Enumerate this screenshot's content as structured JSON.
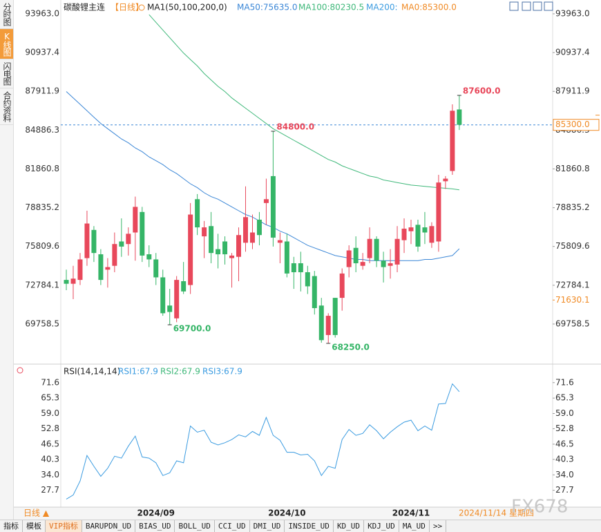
{
  "sidebar": [
    "分时图",
    "K线图",
    "闪电图",
    "合约资料"
  ],
  "header": {
    "symbol": "碳酸锂主连",
    "period": "【日线】",
    "indicator": "MA1(50,100,200,0)",
    "ma200": "MA200:",
    "ma0": "MA0:85300.0"
  },
  "chart_data": [
    {
      "type": "candlestick",
      "categories": [
        null,
        null,
        null,
        null,
        null,
        null,
        null,
        null,
        null,
        null,
        null,
        null,
        null,
        "2024/09",
        null,
        null,
        null,
        null,
        null,
        null,
        null,
        null,
        null,
        null,
        null,
        null,
        null,
        null,
        null,
        null,
        null,
        null,
        "2024/10",
        null,
        null,
        null,
        null,
        null,
        null,
        null,
        null,
        null,
        null,
        null,
        null,
        null,
        null,
        null,
        null,
        null,
        "2024/11",
        null,
        null,
        null,
        null,
        null,
        null,
        null
      ],
      "open": [
        73200,
        72900,
        73200,
        74900,
        77100,
        75200,
        74000,
        74300,
        76200,
        76000,
        76900,
        78500,
        75200,
        74800,
        73400,
        71200,
        70200,
        73100,
        72800,
        79500,
        76600,
        77400,
        75600,
        76200,
        74900,
        75000,
        76100,
        76100,
        77900,
        79200,
        81300,
        76100,
        76200,
        74500,
        74500,
        73800,
        73500,
        71200,
        68900,
        71800,
        71800,
        74200,
        75700,
        74300,
        74900,
        76400,
        74700,
        74300,
        74400,
        76300,
        77000,
        77500,
        77300,
        76100,
        76200,
        80900,
        81700,
        86500
      ],
      "high": [
        74000,
        74300,
        75300,
        78600,
        77400,
        75600,
        74900,
        76900,
        78000,
        77300,
        79700,
        78900,
        75900,
        75300,
        74000,
        72500,
        73500,
        74600,
        79200,
        79900,
        77800,
        78500,
        76800,
        76600,
        75300,
        77300,
        80500,
        78300,
        78500,
        81100,
        84800,
        76900,
        76800,
        75000,
        75400,
        74300,
        73900,
        71800,
        70600,
        71800,
        74100,
        75900,
        76600,
        75300,
        77300,
        76600,
        75400,
        75600,
        77400,
        78000,
        77900,
        77900,
        78500,
        77700,
        81400,
        81300,
        86900,
        87600
      ],
      "low": [
        72400,
        71700,
        72800,
        74300,
        74600,
        72800,
        72600,
        73800,
        75000,
        75100,
        74700,
        74600,
        74200,
        72800,
        70400,
        69700,
        69900,
        72100,
        72100,
        76700,
        74900,
        74500,
        74100,
        74400,
        72600,
        73100,
        75400,
        75600,
        75900,
        77500,
        75800,
        74500,
        73400,
        72500,
        72300,
        72100,
        70500,
        68300,
        68250,
        68700,
        70800,
        73400,
        73800,
        74000,
        74500,
        74200,
        73000,
        73300,
        73800,
        75300,
        76000,
        75400,
        76000,
        75700,
        75400,
        80300,
        81400,
        84900
      ],
      "close": [
        72900,
        73300,
        74800,
        77600,
        75300,
        73200,
        74200,
        76000,
        75800,
        76800,
        78900,
        75100,
        74800,
        73400,
        70600,
        70700,
        73200,
        72300,
        78300,
        77300,
        77300,
        75300,
        75200,
        75200,
        75100,
        76700,
        78100,
        76900,
        76700,
        79500,
        76500,
        76300,
        73700,
        73800,
        73800,
        72700,
        71000,
        68500,
        70400,
        68900,
        73700,
        75500,
        74500,
        74600,
        76400,
        74700,
        74200,
        74500,
        76400,
        77200,
        77300,
        75800,
        76900,
        77400,
        80800,
        81100,
        86400,
        85300
      ],
      "up_color": "#e8485b",
      "down_color": "#35b567",
      "series": [
        {
          "name": "MA50:75635.0",
          "color": "#3a86d6",
          "values": [
            87900,
            87400,
            86900,
            86400,
            85900,
            85400,
            85000,
            84600,
            84200,
            83900,
            83500,
            83200,
            82800,
            82500,
            82200,
            81800,
            81500,
            81100,
            80700,
            80400,
            80000,
            79700,
            79500,
            79200,
            78900,
            78600,
            78300,
            78100,
            77800,
            77500,
            77300,
            77000,
            76800,
            76500,
            76200,
            75900,
            75700,
            75500,
            75300,
            75100,
            75000,
            74900,
            74800,
            74800,
            74700,
            74700,
            74700,
            74700,
            74700,
            74700,
            74700,
            74700,
            74800,
            74800,
            74900,
            75000,
            75100,
            75635
          ]
        },
        {
          "name": "MA100:80230.5",
          "color": "#3fb87a",
          "values": [
            null,
            null,
            null,
            null,
            null,
            null,
            null,
            null,
            null,
            null,
            null,
            null,
            93900,
            93300,
            92700,
            92100,
            91500,
            90900,
            90400,
            89900,
            89300,
            88800,
            88300,
            87900,
            87400,
            87000,
            86600,
            86200,
            85800,
            85400,
            85000,
            84700,
            84400,
            84100,
            83800,
            83500,
            83200,
            82900,
            82600,
            82400,
            82100,
            81900,
            81700,
            81500,
            81300,
            81200,
            81000,
            80900,
            80800,
            80700,
            80600,
            80550,
            80500,
            80450,
            80400,
            80350,
            80300,
            80230.5
          ]
        }
      ],
      "ylim": [
        66738,
        94610
      ],
      "yticks": [
        {
          "value": 93963.0,
          "label": "93963.0"
        },
        {
          "value": 90937.4,
          "label": "90937.4"
        },
        {
          "value": 87911.9,
          "label": "87911.9"
        },
        {
          "value": 84886.3,
          "label": "84886.3"
        },
        {
          "value": 81860.8,
          "label": "81860.8"
        },
        {
          "value": 78835.2,
          "label": "78835.2"
        },
        {
          "value": 75809.6,
          "label": "75809.6"
        },
        {
          "value": 72784.1,
          "label": "72784.1"
        },
        {
          "value": 69758.5,
          "label": "69758.5"
        }
      ],
      "annotations": [
        {
          "value": 84800,
          "label": "84800.0"
        },
        {
          "value": 87600,
          "label": "87600.0"
        },
        {
          "value": 69700,
          "label": "69700.0"
        },
        {
          "value": 68250,
          "label": "68250.0"
        }
      ],
      "price_lines": [
        {
          "value": 85300,
          "label": "85300.0",
          "color": "#f08a24",
          "dashed": true
        },
        {
          "value": 71630.1,
          "label": "71630.1",
          "color": "#f08a24",
          "dashed": false
        }
      ]
    },
    {
      "type": "line",
      "title": "RSI(14,14,14)",
      "series": [
        {
          "name": "RSI1:67.9",
          "color": "#3a9be0",
          "values": [
            24.1,
            25.8,
            31.5,
            41.9,
            37.5,
            33.4,
            36.7,
            41.6,
            40.8,
            45.7,
            49.8,
            41.3,
            40.8,
            38.9,
            33.7,
            34.8,
            39.7,
            38.9,
            53.9,
            51.4,
            52.2,
            47.3,
            46.2,
            47.1,
            48.4,
            50.3,
            49.5,
            51.7,
            50.1,
            57.4,
            50.1,
            48.1,
            43.2,
            43.2,
            42.1,
            42.4,
            39.7,
            33.7,
            37.5,
            36.7,
            48.4,
            52.5,
            50.1,
            50.9,
            54.4,
            52.0,
            48.7,
            51.4,
            53.6,
            55.5,
            56.3,
            52.0,
            53.9,
            52.2,
            62.9,
            63.1,
            71.1,
            67.9
          ]
        }
      ],
      "other_labels": [
        {
          "label": "RSI2:67.9",
          "color": "#3fb87a"
        },
        {
          "label": "RSI3:67.9",
          "color": "#3a9be0"
        }
      ],
      "ylim": [
        21.4,
        73.8
      ],
      "yticks": [
        {
          "value": 71.6,
          "label": "71.6"
        },
        {
          "value": 65.3,
          "label": "65.3"
        },
        {
          "value": 59.0,
          "label": "59.0"
        },
        {
          "value": 52.8,
          "label": "52.8"
        },
        {
          "value": 46.5,
          "label": "46.5"
        },
        {
          "value": 40.3,
          "label": "40.3"
        },
        {
          "value": 34.0,
          "label": "34.0"
        },
        27.7
      ]
    }
  ],
  "footer": {
    "period": "日线 ▲",
    "date": "2024/11/14 星期四",
    "watermark": "FX678"
  },
  "toolbar": [
    "指标",
    "模板",
    "VIP指标",
    "BARUPDN_UD",
    "BIAS_UD",
    "BOLL_UD",
    "CCI_UD",
    "DMI_UD",
    "INSIDE_UD",
    "KD_UD",
    "KDJ_UD",
    "MA_UD",
    ">>"
  ]
}
